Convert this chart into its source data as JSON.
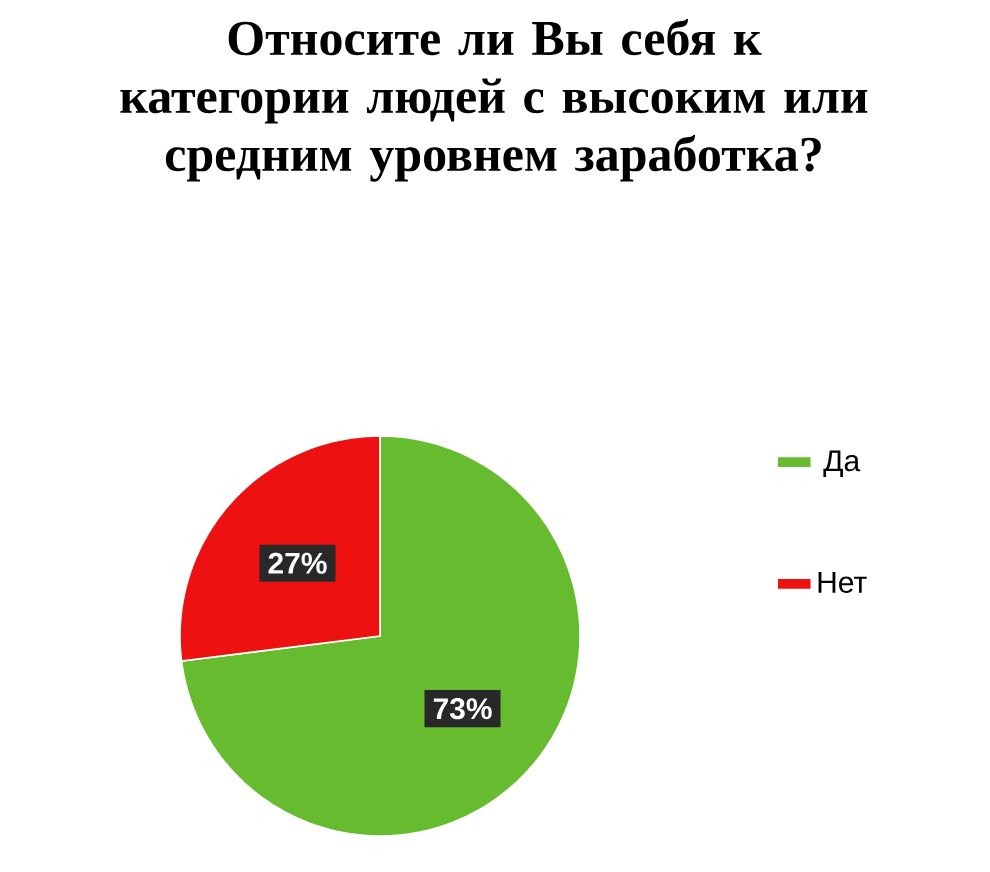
{
  "chart_data": {
    "type": "pie",
    "title": "Относите ли Вы себя к категории людей с высоким или средним уровнем заработка?",
    "categories": [
      "Да",
      "Нет"
    ],
    "values": [
      73,
      27
    ],
    "value_labels": [
      "73%",
      "27%"
    ],
    "colors": [
      "#66bb2e",
      "#ee1111"
    ],
    "legend": "right"
  }
}
